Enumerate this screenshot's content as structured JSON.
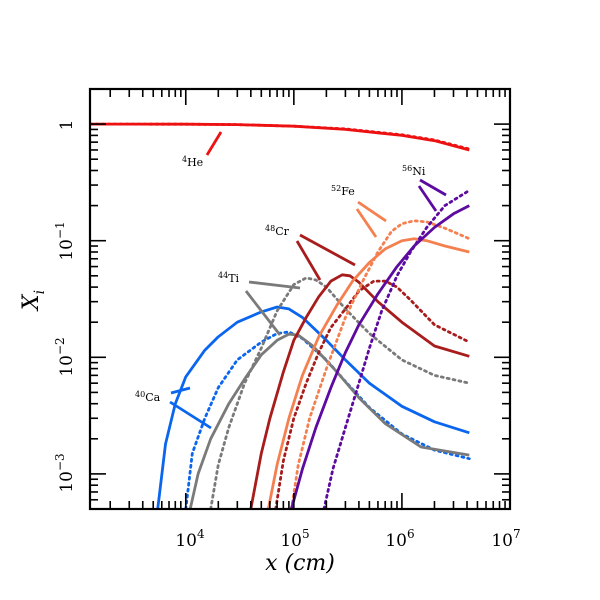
{
  "chart_data": {
    "type": "line",
    "title": "",
    "xlabel": "x (cm)",
    "ylabel": "X_i",
    "xscale": "log",
    "yscale": "log",
    "xlim": [
      1300,
      10000000
    ],
    "ylim": [
      0.0005,
      2
    ],
    "x_ticks": [
      {
        "value": 10000,
        "base": "10",
        "exp": "4"
      },
      {
        "value": 100000,
        "base": "10",
        "exp": "5"
      },
      {
        "value": 1000000,
        "base": "10",
        "exp": "6"
      },
      {
        "value": 10000000,
        "base": "10",
        "exp": "7"
      }
    ],
    "y_ticks": [
      {
        "value": 1,
        "base": "1",
        "exp": ""
      },
      {
        "value": 0.1,
        "base": "10",
        "exp": "−1"
      },
      {
        "value": 0.01,
        "base": "10",
        "exp": "−2"
      },
      {
        "value": 0.001,
        "base": "10",
        "exp": "−3"
      }
    ],
    "line_styles": [
      "solid",
      "dotted"
    ],
    "series": [
      {
        "name": "4He",
        "label_sup": "4",
        "label_el": "He",
        "color": "#ee1111",
        "solid": [
          [
            1300,
            1.0
          ],
          [
            10000,
            0.999
          ],
          [
            30000,
            0.99
          ],
          [
            100000,
            0.96
          ],
          [
            300000,
            0.9
          ],
          [
            1000000,
            0.8
          ],
          [
            2000000,
            0.72
          ],
          [
            4200000,
            0.6
          ]
        ],
        "dotted": [
          [
            1300,
            1.0
          ],
          [
            10000,
            0.999
          ],
          [
            30000,
            0.99
          ],
          [
            100000,
            0.96
          ],
          [
            300000,
            0.91
          ],
          [
            1000000,
            0.81
          ],
          [
            2000000,
            0.73
          ],
          [
            4200000,
            0.61
          ]
        ]
      },
      {
        "name": "40Ca",
        "label_sup": "40",
        "label_el": "Ca",
        "color": "#0a66ee",
        "solid": [
          [
            5500,
            0.0005
          ],
          [
            6500,
            0.0018
          ],
          [
            8000,
            0.004
          ],
          [
            10000,
            0.0068
          ],
          [
            15000,
            0.0115
          ],
          [
            20000,
            0.015
          ],
          [
            30000,
            0.02
          ],
          [
            50000,
            0.0245
          ],
          [
            70000,
            0.027
          ],
          [
            90000,
            0.026
          ],
          [
            120000,
            0.022
          ],
          [
            200000,
            0.014
          ],
          [
            300000,
            0.0095
          ],
          [
            500000,
            0.006
          ],
          [
            1000000,
            0.0038
          ],
          [
            2000000,
            0.0028
          ],
          [
            4200000,
            0.00225
          ]
        ],
        "dotted": [
          [
            10000,
            0.0005
          ],
          [
            11500,
            0.0015
          ],
          [
            15000,
            0.003
          ],
          [
            20000,
            0.0055
          ],
          [
            30000,
            0.0095
          ],
          [
            50000,
            0.0135
          ],
          [
            70000,
            0.016
          ],
          [
            90000,
            0.0165
          ],
          [
            120000,
            0.0145
          ],
          [
            200000,
            0.0095
          ],
          [
            300000,
            0.0062
          ],
          [
            500000,
            0.0037
          ],
          [
            1000000,
            0.0022
          ],
          [
            2000000,
            0.0016
          ],
          [
            4200000,
            0.00135
          ]
        ]
      },
      {
        "name": "44Ti",
        "label_sup": "44",
        "label_el": "Ti",
        "color": "#7a7a7a",
        "solid": [
          [
            11000,
            0.0005
          ],
          [
            13000,
            0.001
          ],
          [
            17000,
            0.002
          ],
          [
            25000,
            0.004
          ],
          [
            35000,
            0.0065
          ],
          [
            50000,
            0.0105
          ],
          [
            70000,
            0.014
          ],
          [
            90000,
            0.0158
          ],
          [
            110000,
            0.0155
          ],
          [
            150000,
            0.0125
          ],
          [
            250000,
            0.0075
          ],
          [
            400000,
            0.0045
          ],
          [
            700000,
            0.0027
          ],
          [
            1500000,
            0.0017
          ],
          [
            4200000,
            0.00145
          ]
        ],
        "dotted": [
          [
            17000,
            0.0005
          ],
          [
            20000,
            0.0012
          ],
          [
            25000,
            0.0025
          ],
          [
            35000,
            0.006
          ],
          [
            50000,
            0.012
          ],
          [
            70000,
            0.025
          ],
          [
            100000,
            0.042
          ],
          [
            130000,
            0.048
          ],
          [
            160000,
            0.046
          ],
          [
            200000,
            0.04
          ],
          [
            300000,
            0.026
          ],
          [
            500000,
            0.016
          ],
          [
            1000000,
            0.0095
          ],
          [
            2000000,
            0.007
          ],
          [
            4200000,
            0.006
          ]
        ]
      },
      {
        "name": "48Cr",
        "label_sup": "48",
        "label_el": "Cr",
        "color": "#a81c1c",
        "solid": [
          [
            40000,
            0.0005
          ],
          [
            50000,
            0.0015
          ],
          [
            60000,
            0.003
          ],
          [
            80000,
            0.0075
          ],
          [
            100000,
            0.014
          ],
          [
            130000,
            0.022
          ],
          [
            170000,
            0.033
          ],
          [
            220000,
            0.045
          ],
          [
            280000,
            0.051
          ],
          [
            330000,
            0.05
          ],
          [
            400000,
            0.044
          ],
          [
            600000,
            0.03
          ],
          [
            1000000,
            0.02
          ],
          [
            2000000,
            0.0125
          ],
          [
            4200000,
            0.0102
          ]
        ],
        "dotted": [
          [
            68000,
            0.0005
          ],
          [
            80000,
            0.0013
          ],
          [
            100000,
            0.003
          ],
          [
            130000,
            0.006
          ],
          [
            170000,
            0.011
          ],
          [
            220000,
            0.018
          ],
          [
            300000,
            0.026
          ],
          [
            400000,
            0.037
          ],
          [
            550000,
            0.045
          ],
          [
            700000,
            0.045
          ],
          [
            900000,
            0.04
          ],
          [
            1200000,
            0.031
          ],
          [
            2000000,
            0.019
          ],
          [
            4200000,
            0.0135
          ]
        ]
      },
      {
        "name": "52Fe",
        "label_sup": "52",
        "label_el": "Fe",
        "color": "#f5804f",
        "solid": [
          [
            58000,
            0.0005
          ],
          [
            70000,
            0.0012
          ],
          [
            90000,
            0.003
          ],
          [
            120000,
            0.007
          ],
          [
            170000,
            0.015
          ],
          [
            250000,
            0.028
          ],
          [
            350000,
            0.045
          ],
          [
            500000,
            0.065
          ],
          [
            700000,
            0.085
          ],
          [
            1000000,
            0.1
          ],
          [
            1300000,
            0.104
          ],
          [
            1700000,
            0.1
          ],
          [
            2500000,
            0.09
          ],
          [
            4200000,
            0.08
          ]
        ],
        "dotted": [
          [
            95000,
            0.0005
          ],
          [
            110000,
            0.0012
          ],
          [
            140000,
            0.003
          ],
          [
            200000,
            0.008
          ],
          [
            300000,
            0.022
          ],
          [
            450000,
            0.048
          ],
          [
            600000,
            0.08
          ],
          [
            800000,
            0.12
          ],
          [
            1000000,
            0.14
          ],
          [
            1300000,
            0.148
          ],
          [
            1700000,
            0.145
          ],
          [
            2500000,
            0.128
          ],
          [
            4200000,
            0.104
          ]
        ]
      },
      {
        "name": "56Ni",
        "label_sup": "56",
        "label_el": "Ni",
        "color": "#5c0aa0",
        "solid": [
          [
            95000,
            0.0005
          ],
          [
            120000,
            0.0011
          ],
          [
            160000,
            0.0025
          ],
          [
            220000,
            0.0055
          ],
          [
            300000,
            0.011
          ],
          [
            400000,
            0.019
          ],
          [
            600000,
            0.035
          ],
          [
            900000,
            0.06
          ],
          [
            1300000,
            0.09
          ],
          [
            2000000,
            0.13
          ],
          [
            3000000,
            0.17
          ],
          [
            4200000,
            0.2
          ]
        ],
        "dotted": [
          [
            190000,
            0.0005
          ],
          [
            230000,
            0.0011
          ],
          [
            300000,
            0.0025
          ],
          [
            400000,
            0.006
          ],
          [
            500000,
            0.012
          ],
          [
            650000,
            0.025
          ],
          [
            900000,
            0.05
          ],
          [
            1200000,
            0.08
          ],
          [
            1700000,
            0.13
          ],
          [
            2500000,
            0.2
          ],
          [
            4200000,
            0.27
          ]
        ]
      }
    ]
  }
}
